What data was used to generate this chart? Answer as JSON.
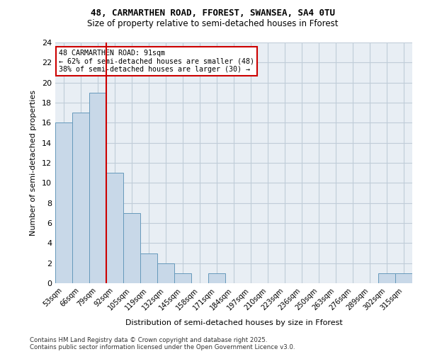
{
  "title1": "48, CARMARTHEN ROAD, FFOREST, SWANSEA, SA4 0TU",
  "title2": "Size of property relative to semi-detached houses in Fforest",
  "xlabel": "Distribution of semi-detached houses by size in Fforest",
  "ylabel": "Number of semi-detached properties",
  "bins": [
    "53sqm",
    "66sqm",
    "79sqm",
    "92sqm",
    "105sqm",
    "119sqm",
    "132sqm",
    "145sqm",
    "158sqm",
    "171sqm",
    "184sqm",
    "197sqm",
    "210sqm",
    "223sqm",
    "236sqm",
    "250sqm",
    "263sqm",
    "276sqm",
    "289sqm",
    "302sqm",
    "315sqm"
  ],
  "values": [
    16,
    17,
    19,
    11,
    7,
    3,
    2,
    1,
    0,
    1,
    0,
    0,
    0,
    0,
    0,
    0,
    0,
    0,
    0,
    1,
    1
  ],
  "bar_color": "#c8d8e8",
  "bar_edge_color": "#6699bb",
  "vline_x": 2.5,
  "vline_color": "#cc0000",
  "annotation_text": "48 CARMARTHEN ROAD: 91sqm\n← 62% of semi-detached houses are smaller (48)\n38% of semi-detached houses are larger (30) →",
  "annotation_box_color": "#ffffff",
  "annotation_border_color": "#cc0000",
  "ylim": [
    0,
    24
  ],
  "yticks": [
    0,
    2,
    4,
    6,
    8,
    10,
    12,
    14,
    16,
    18,
    20,
    22,
    24
  ],
  "grid_color": "#c0ccd8",
  "background_color": "#e8eef4",
  "footer_text": "Contains HM Land Registry data © Crown copyright and database right 2025.\nContains public sector information licensed under the Open Government Licence v3.0."
}
